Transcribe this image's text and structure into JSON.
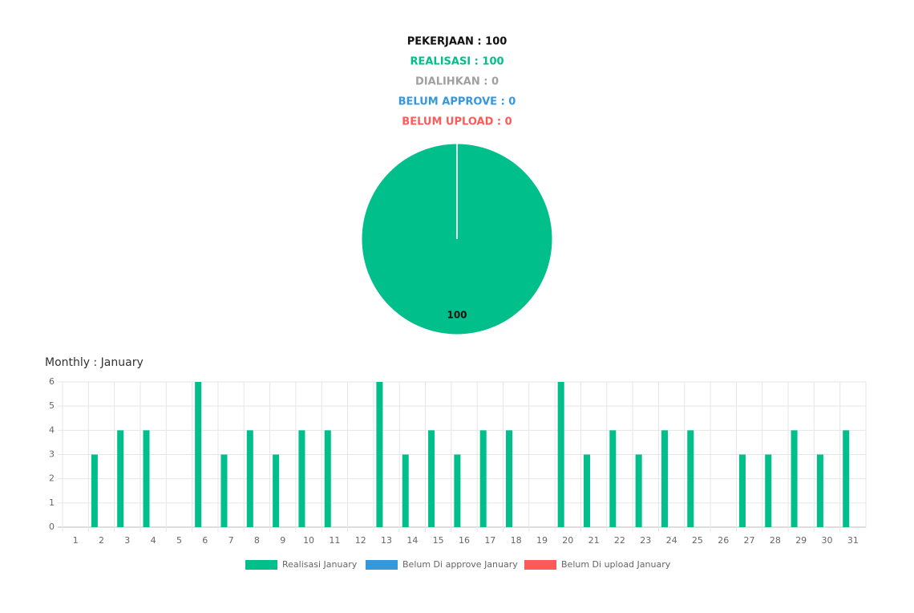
{
  "summary": [
    {
      "text": "PEKERJAAN : 100",
      "color": "#111111"
    },
    {
      "text": "REALISASI : 100",
      "color": "#00bf8a"
    },
    {
      "text": "DIALIHKAN : 0",
      "color": "#a0a0a0"
    },
    {
      "text": "BELUM APPROVE : 0",
      "color": "#3498db"
    },
    {
      "text": "BELUM UPLOAD : 0",
      "color": "#ff5a5a"
    }
  ],
  "chart_data": [
    {
      "type": "pie",
      "values": [
        100
      ],
      "colors": [
        "#00bf8a"
      ]
    },
    {
      "type": "bar",
      "title": "Monthly : January",
      "categories": [
        "1",
        "2",
        "3",
        "4",
        "5",
        "6",
        "7",
        "8",
        "9",
        "10",
        "11",
        "12",
        "13",
        "14",
        "15",
        "16",
        "17",
        "18",
        "19",
        "20",
        "21",
        "22",
        "23",
        "24",
        "25",
        "26",
        "27",
        "28",
        "29",
        "30",
        "31"
      ],
      "series": [
        {
          "name": "Realisasi January",
          "color": "#00bf8a",
          "values": [
            0,
            3,
            4,
            4,
            0,
            6,
            3,
            4,
            3,
            4,
            4,
            0,
            6,
            3,
            4,
            3,
            4,
            4,
            0,
            6,
            3,
            4,
            3,
            4,
            4,
            0,
            3,
            3,
            4,
            3,
            4
          ]
        },
        {
          "name": "Belum Di approve January",
          "color": "#3498db",
          "values": [
            0,
            0,
            0,
            0,
            0,
            0,
            0,
            0,
            0,
            0,
            0,
            0,
            0,
            0,
            0,
            0,
            0,
            0,
            0,
            0,
            0,
            0,
            0,
            0,
            0,
            0,
            0,
            0,
            0,
            0,
            0
          ]
        },
        {
          "name": "Belum Di upload January",
          "color": "#ff5a5a",
          "values": [
            0,
            0,
            0,
            0,
            0,
            0,
            0,
            0,
            0,
            0,
            0,
            0,
            0,
            0,
            0,
            0,
            0,
            0,
            0,
            0,
            0,
            0,
            0,
            0,
            0,
            0,
            0,
            0,
            0,
            0,
            0
          ]
        }
      ],
      "ylim": [
        0,
        6
      ],
      "yticks": [
        0,
        1,
        2,
        3,
        4,
        5,
        6
      ],
      "grid": true
    }
  ]
}
